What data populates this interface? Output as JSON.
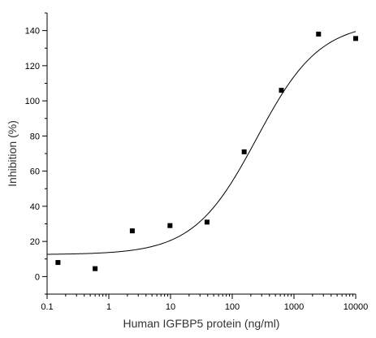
{
  "chart_data": {
    "type": "scatter",
    "xlabel": "Human IGFBP5 protein (ng/ml)",
    "ylabel": "Inhibition (%)",
    "x_scale": "log",
    "xlim": [
      0.1,
      10000
    ],
    "ylim": [
      -10,
      150
    ],
    "x_ticks": [
      0.1,
      1,
      10,
      100,
      1000,
      10000
    ],
    "x_tick_labels": [
      "0.1",
      "1",
      "10",
      "100",
      "1000",
      "10000"
    ],
    "y_ticks": [
      0,
      20,
      40,
      60,
      80,
      100,
      120,
      140
    ],
    "y_tick_labels": [
      "0",
      "20",
      "40",
      "60",
      "80",
      "100",
      "120",
      "140"
    ],
    "grid": false,
    "legend": "none",
    "points": [
      {
        "x": 0.15,
        "y": 8
      },
      {
        "x": 0.6,
        "y": 4.5
      },
      {
        "x": 2.4,
        "y": 26
      },
      {
        "x": 9.8,
        "y": 29
      },
      {
        "x": 39,
        "y": 31
      },
      {
        "x": 156,
        "y": 71
      },
      {
        "x": 625,
        "y": 106
      },
      {
        "x": 2500,
        "y": 138
      },
      {
        "x": 10000,
        "y": 135.5
      }
    ],
    "fit_curve": {
      "kind": "4PL",
      "bottom": 12.5,
      "top": 145,
      "ec50": 250,
      "hill": 0.85
    },
    "marker_color": "#000000",
    "curve_color": "#000000"
  }
}
